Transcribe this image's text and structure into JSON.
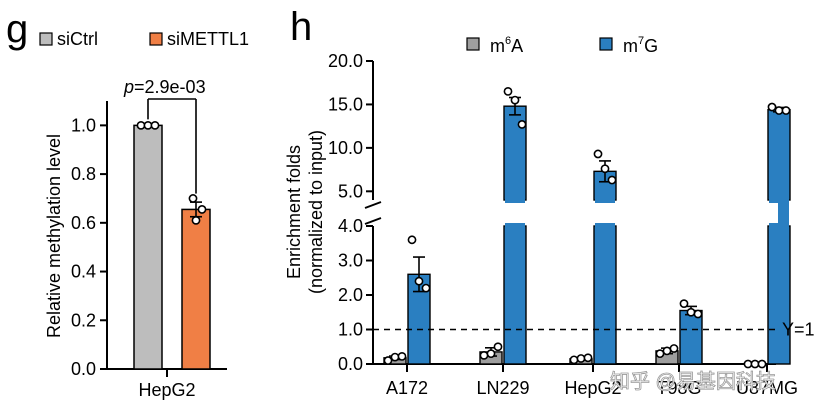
{
  "watermark": "知乎 @易基因科技",
  "colors": {
    "siCtrl": "#bdbdbd",
    "siMETTL1": "#f07f45",
    "m6A": "#9e9e9e",
    "m7G": "#2a7fc1",
    "axis": "#000000"
  },
  "chart_data": [
    {
      "panel": "g",
      "type": "bar",
      "ylabel": "Relative methylation level",
      "ylim": [
        0,
        1.1
      ],
      "yticks": [
        "0.0",
        "0.2",
        "0.4",
        "0.6",
        "0.8",
        "1.0"
      ],
      "ytick_values": [
        0,
        0.2,
        0.4,
        0.6,
        0.8,
        1.0
      ],
      "xlabel": "HepG2",
      "legend": [
        {
          "name": "siCtrl",
          "color_key": "siCtrl"
        },
        {
          "name": "siMETTL1",
          "color_key": "siMETTL1"
        }
      ],
      "series": [
        {
          "name": "siCtrl",
          "values": [
            1.0
          ],
          "error": [
            0.0
          ],
          "points": [
            1.0,
            1.0,
            1.0
          ]
        },
        {
          "name": "siMETTL1",
          "values": [
            0.655
          ],
          "error": [
            0.03
          ],
          "points": [
            0.7,
            0.655,
            0.61
          ]
        }
      ],
      "annotation": {
        "p_symbol": "p",
        "p_value": "=2.9e-03"
      }
    },
    {
      "panel": "h",
      "type": "bar",
      "ylabel_line1": "Enrichment folds",
      "ylabel_line2": "(normalized to input)",
      "broken_axis": true,
      "lower_ylim": [
        0,
        4.0
      ],
      "upper_ylim": [
        4.0,
        20.0
      ],
      "yticks_lower": [
        "0.0",
        "1.0",
        "2.0",
        "3.0",
        "4.0"
      ],
      "yticks_lower_values": [
        0,
        1,
        2,
        3,
        4
      ],
      "yticks_upper": [
        "5.0",
        "10.0",
        "15.0",
        "20.0"
      ],
      "yticks_upper_values": [
        5,
        10,
        15,
        20
      ],
      "categories": [
        "A172",
        "LN229",
        "HepG2",
        "T98G",
        "U87MG"
      ],
      "legend": [
        {
          "name": "m",
          "sup": "6",
          "tail": "A",
          "color_key": "m6A"
        },
        {
          "name": "m",
          "sup": "7",
          "tail": "G",
          "color_key": "m7G"
        }
      ],
      "series": [
        {
          "name": "m6A",
          "values": [
            0.18,
            0.35,
            0.15,
            0.38,
            0.0
          ],
          "error": [
            0.05,
            0.12,
            0.04,
            0.08,
            0.0
          ],
          "points": [
            [
              0.1,
              0.2,
              0.22
            ],
            [
              0.25,
              0.3,
              0.5
            ],
            [
              0.12,
              0.16,
              0.18
            ],
            [
              0.3,
              0.38,
              0.45
            ],
            [
              0.0,
              0.0,
              0.0
            ]
          ]
        },
        {
          "name": "m7G",
          "values": [
            2.6,
            14.8,
            7.3,
            1.55,
            14.4
          ],
          "error": [
            0.5,
            1.0,
            1.2,
            0.12,
            0.25
          ],
          "points": [
            [
              3.6,
              2.4,
              2.2
            ],
            [
              16.5,
              15.5,
              12.7
            ],
            [
              9.3,
              7.6,
              6.3
            ],
            [
              1.75,
              1.5,
              1.45
            ],
            [
              14.7,
              14.3,
              14.3
            ]
          ]
        }
      ],
      "reference_line": {
        "value": 1.0,
        "label": "Y=1"
      }
    }
  ]
}
